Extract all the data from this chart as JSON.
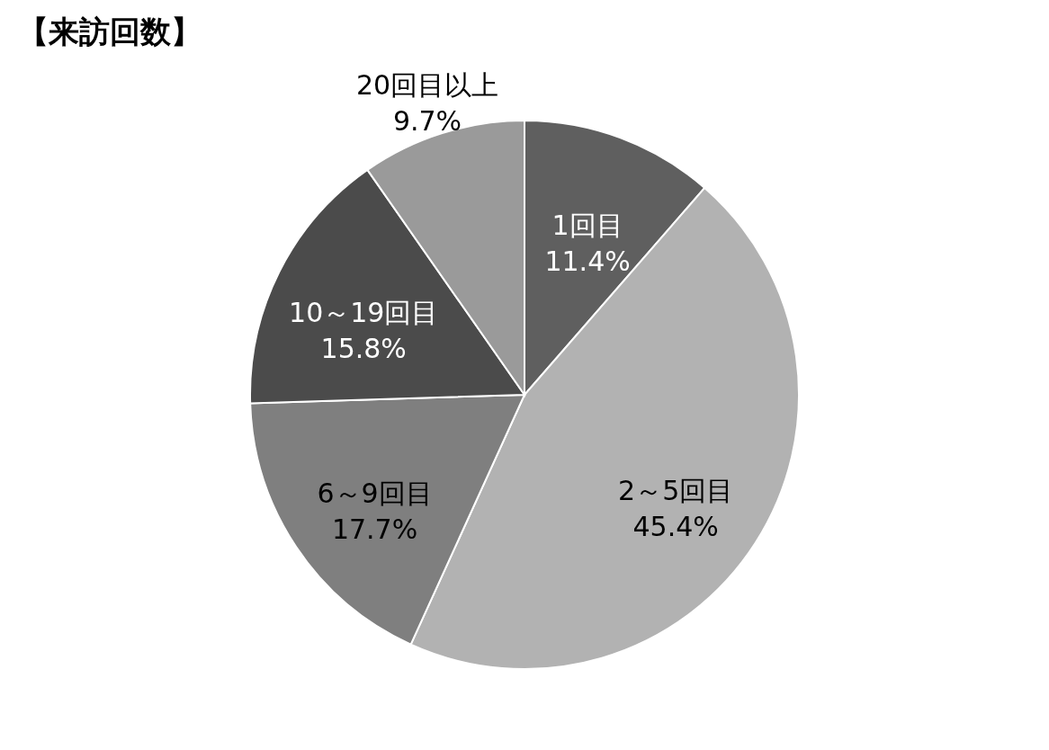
{
  "chart_data": {
    "type": "pie",
    "title": "【来訪回数】",
    "categories": [
      "1回目",
      "2～5回目",
      "6～9回目",
      "10～19回目",
      "20回目以上"
    ],
    "values": [
      11.4,
      45.4,
      17.7,
      15.8,
      9.7
    ],
    "value_labels": [
      "11.4%",
      "45.4%",
      "17.7%",
      "15.8%",
      "9.7%"
    ],
    "colors": [
      "#5f5f5f",
      "#b2b2b2",
      "#7f7f7f",
      "#4b4b4b",
      "#9a9a9a"
    ],
    "legend": false
  }
}
